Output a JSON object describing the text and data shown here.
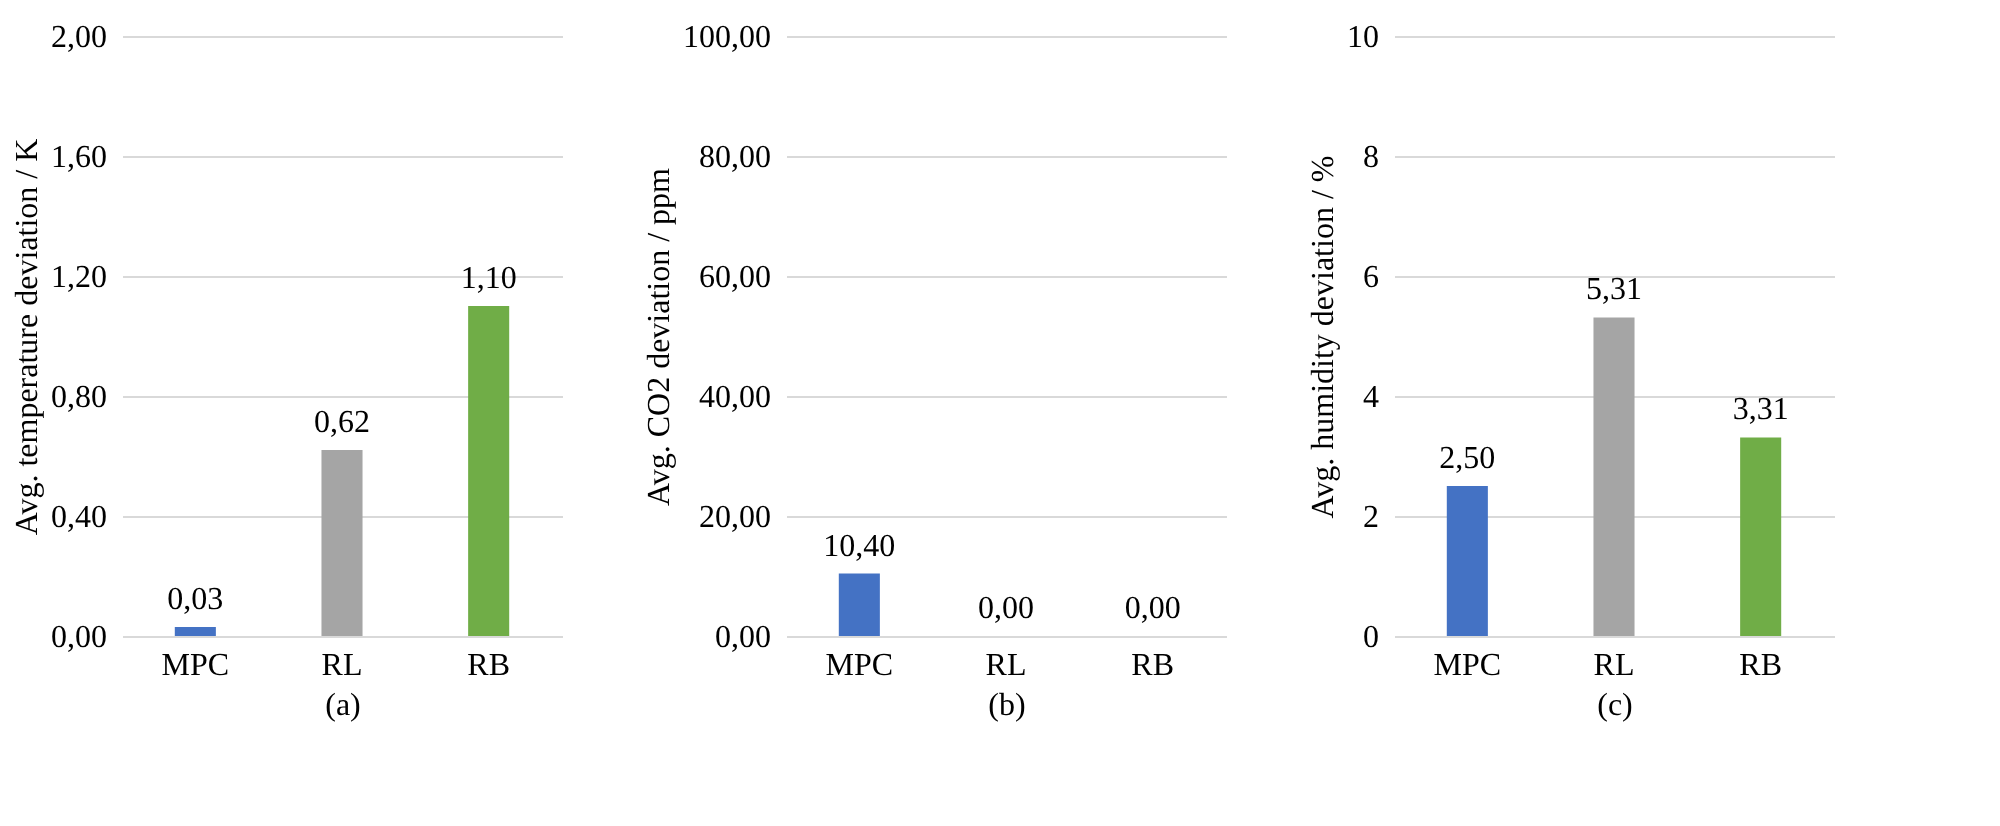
{
  "chart_data": [
    {
      "type": "bar",
      "categories": [
        "MPC",
        "RL",
        "RB"
      ],
      "values": [
        0.03,
        0.62,
        1.1
      ],
      "colors": [
        "#4472c4",
        "#a5a5a5",
        "#70ad47"
      ],
      "value_labels": [
        "0,03",
        "0,62",
        "1,10"
      ],
      "ylim": [
        0,
        2
      ],
      "yticks": [
        {
          "value": 0,
          "label": "0,00"
        },
        {
          "value": 0.4,
          "label": "0,40"
        },
        {
          "value": 0.8,
          "label": "0,80"
        },
        {
          "value": 1.2,
          "label": "1,20"
        },
        {
          "value": 1.6,
          "label": "1,60"
        },
        {
          "value": 2,
          "label": "2,00"
        }
      ],
      "ylabel": "Avg. temperature deviation / K",
      "xlabel": "(a)",
      "grid": "y"
    },
    {
      "type": "bar",
      "categories": [
        "MPC",
        "RL",
        "RB"
      ],
      "values": [
        10.4,
        0,
        0
      ],
      "colors": [
        "#4472c4",
        "#a5a5a5",
        "#70ad47"
      ],
      "value_labels": [
        "10,40",
        "0,00",
        "0,00"
      ],
      "ylim": [
        0,
        100
      ],
      "yticks": [
        {
          "value": 0,
          "label": "0,00"
        },
        {
          "value": 20,
          "label": "20,00"
        },
        {
          "value": 40,
          "label": "40,00"
        },
        {
          "value": 60,
          "label": "60,00"
        },
        {
          "value": 80,
          "label": "80,00"
        },
        {
          "value": 100,
          "label": "100,00"
        }
      ],
      "ylabel": "Avg. CO2 deviation / ppm",
      "xlabel": "(b)",
      "grid": "y"
    },
    {
      "type": "bar",
      "categories": [
        "MPC",
        "RL",
        "RB"
      ],
      "values": [
        2.5,
        5.31,
        3.31
      ],
      "colors": [
        "#4472c4",
        "#a5a5a5",
        "#70ad47"
      ],
      "value_labels": [
        "2,50",
        "5,31",
        "3,31"
      ],
      "ylim": [
        0,
        10
      ],
      "yticks": [
        0,
        2,
        4,
        6,
        8,
        10
      ],
      "ylabel": "Avg. humidity deviation / %",
      "xlabel": "(c)",
      "grid": "y"
    }
  ]
}
